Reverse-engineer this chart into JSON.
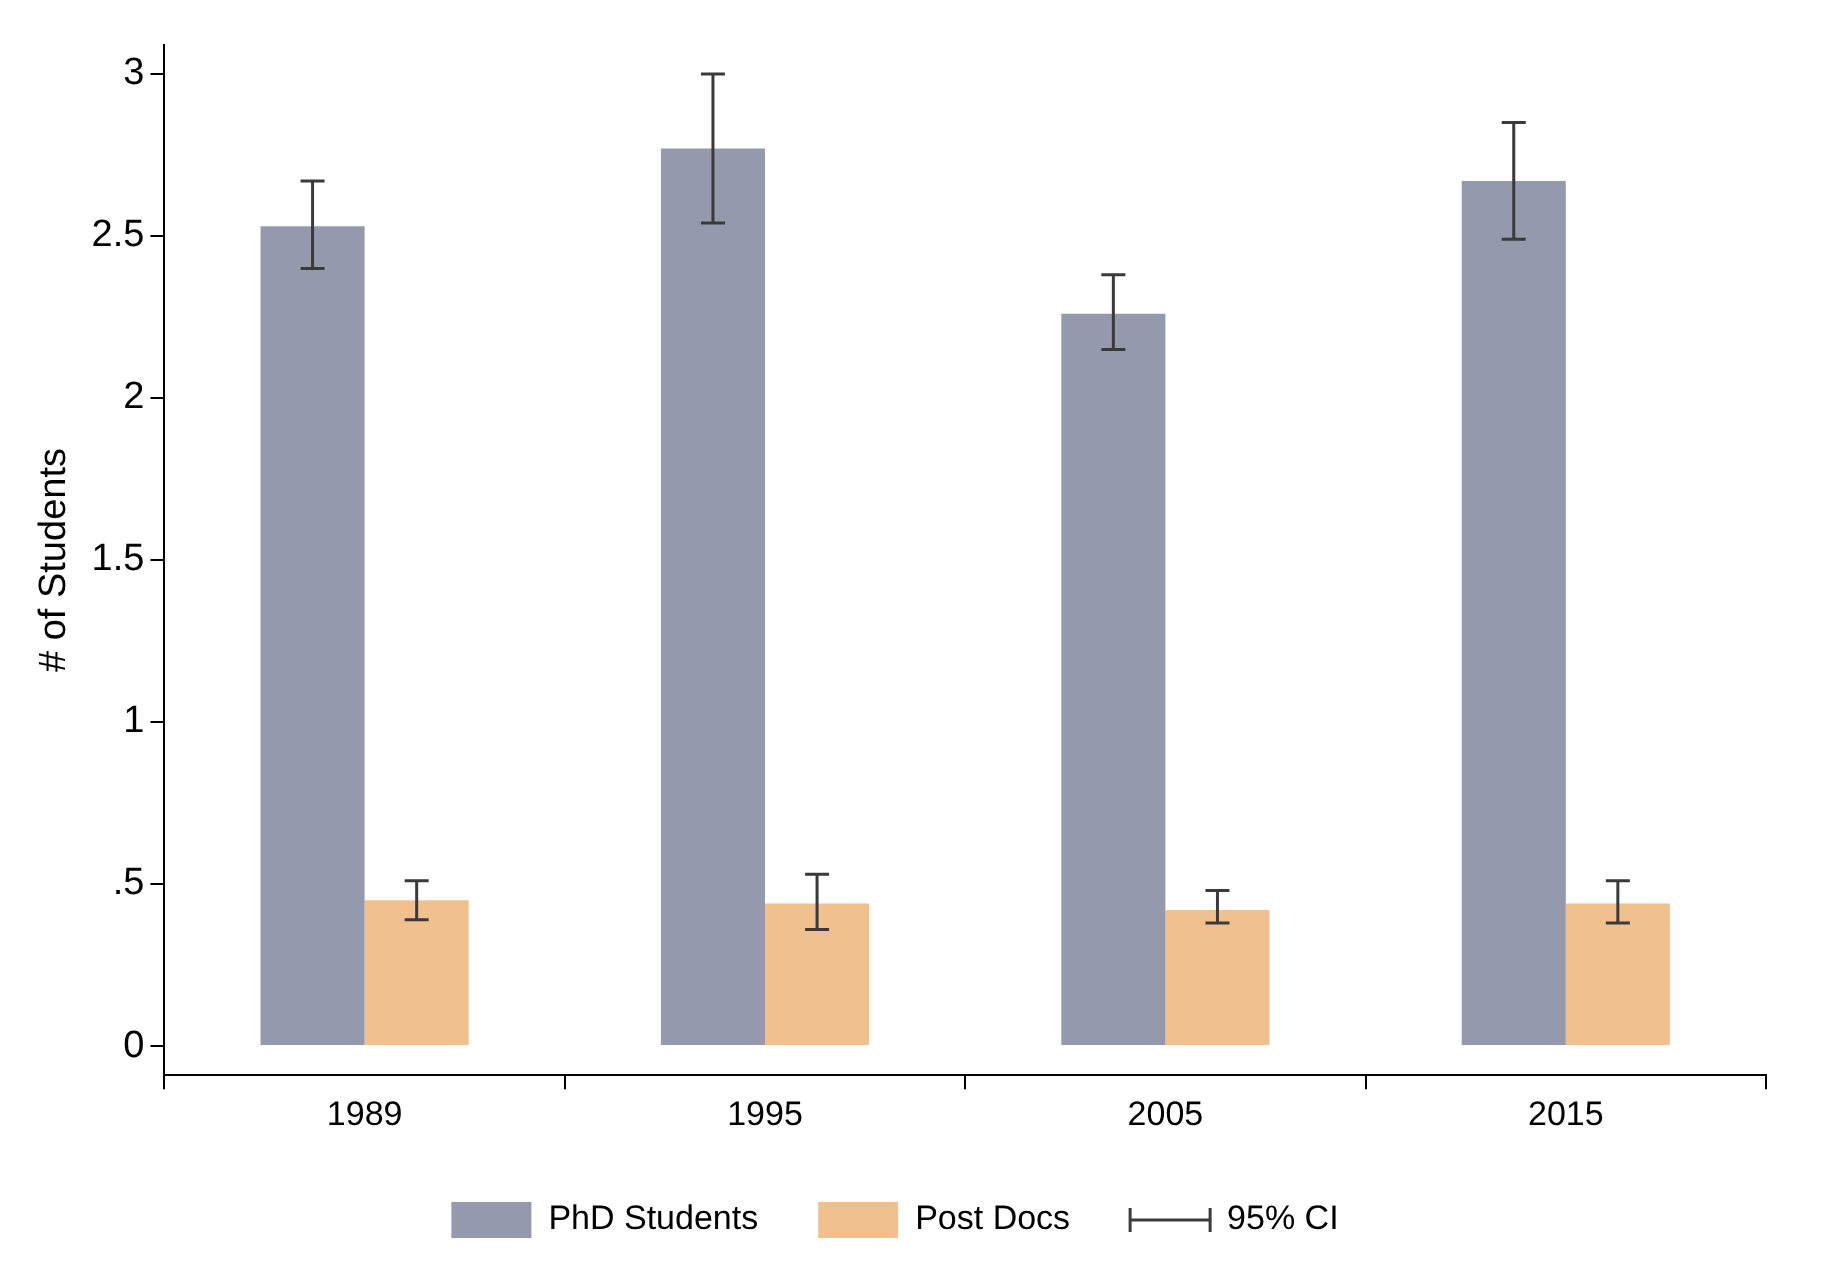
{
  "chart_data": {
    "type": "bar",
    "ylabel": "# of Students",
    "categories": [
      "1989",
      "1995",
      "2005",
      "2015"
    ],
    "series": [
      {
        "name": "PhD Students",
        "color": "#9599ad",
        "values": [
          2.53,
          2.77,
          2.26,
          2.67
        ],
        "errors": [
          [
            2.4,
            2.67
          ],
          [
            2.54,
            3.0
          ],
          [
            2.15,
            2.38
          ],
          [
            2.49,
            2.85
          ]
        ]
      },
      {
        "name": "Post Docs",
        "color": "#f0c08f",
        "values": [
          0.45,
          0.44,
          0.42,
          0.44
        ],
        "errors": [
          [
            0.39,
            0.51
          ],
          [
            0.36,
            0.53
          ],
          [
            0.38,
            0.48
          ],
          [
            0.38,
            0.51
          ]
        ]
      }
    ],
    "ylim": [
      -0.09,
      3.09
    ],
    "yticks": [
      0,
      {
        "value": 0.5,
        "label": ".5"
      },
      1,
      1.5,
      2,
      2.5,
      3
    ],
    "grid": false,
    "legend": "bottom",
    "annotations": [
      "95% CI"
    ]
  }
}
